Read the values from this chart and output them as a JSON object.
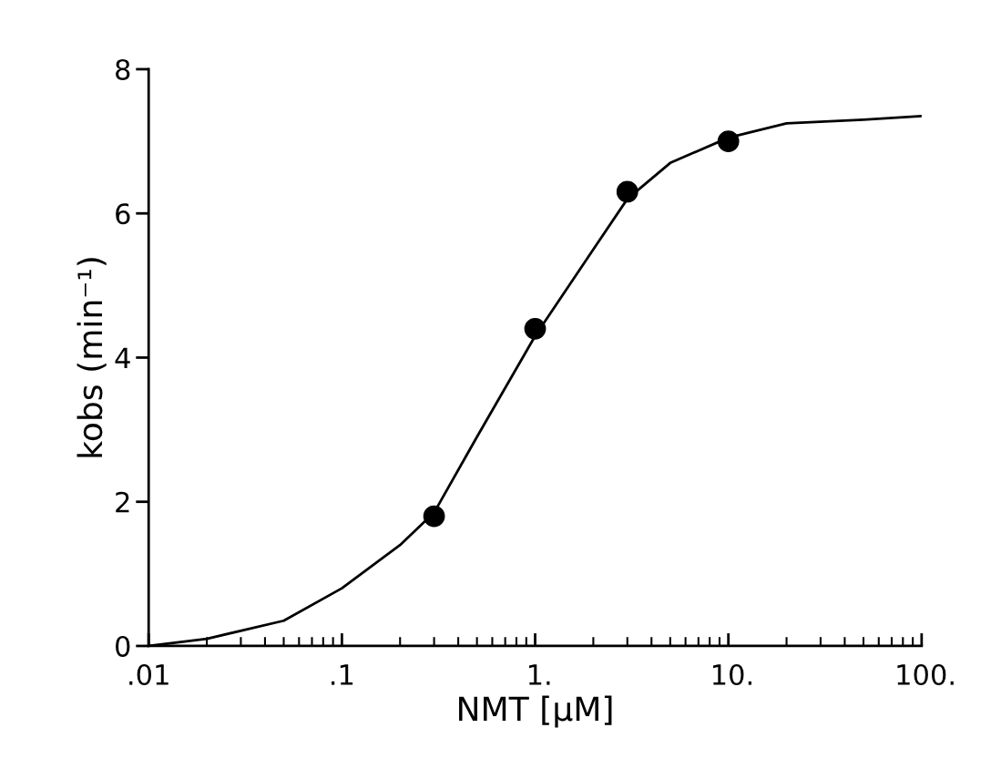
{
  "chart_data": {
    "type": "scatter",
    "xlabel": "NMT [µM]",
    "ylabel": "kobs (min⁻¹)",
    "log": "x",
    "xlim": [
      0.01,
      100
    ],
    "xticks": [
      {
        "value": 0.01,
        "label": ".01"
      },
      {
        "value": 0.1,
        "label": ".1"
      },
      {
        "value": 1,
        "label": "1."
      },
      {
        "value": 10,
        "label": "10."
      },
      {
        "value": 100,
        "label": "100."
      }
    ],
    "ylim": [
      0,
      8
    ],
    "yticks": [
      0,
      2,
      4,
      6,
      8
    ],
    "grid": false,
    "legend": false,
    "series": [
      {
        "type": "line",
        "color": "#000000",
        "marker": "none",
        "x": [
          0.01,
          0.02,
          0.05,
          0.1,
          0.2,
          0.3,
          0.5,
          1,
          2,
          3,
          5,
          10,
          20,
          50,
          100
        ],
        "values": [
          0,
          0.1,
          0.35,
          0.8,
          1.4,
          1.85,
          2.9,
          4.3,
          5.5,
          6.2,
          6.7,
          7.05,
          7.25,
          7.3,
          7.35
        ]
      },
      {
        "color": "#000000",
        "marker": "circle",
        "x": [
          0.3,
          1,
          3,
          10
        ],
        "values": [
          1.8,
          4.4,
          6.3,
          7.0
        ]
      }
    ]
  }
}
